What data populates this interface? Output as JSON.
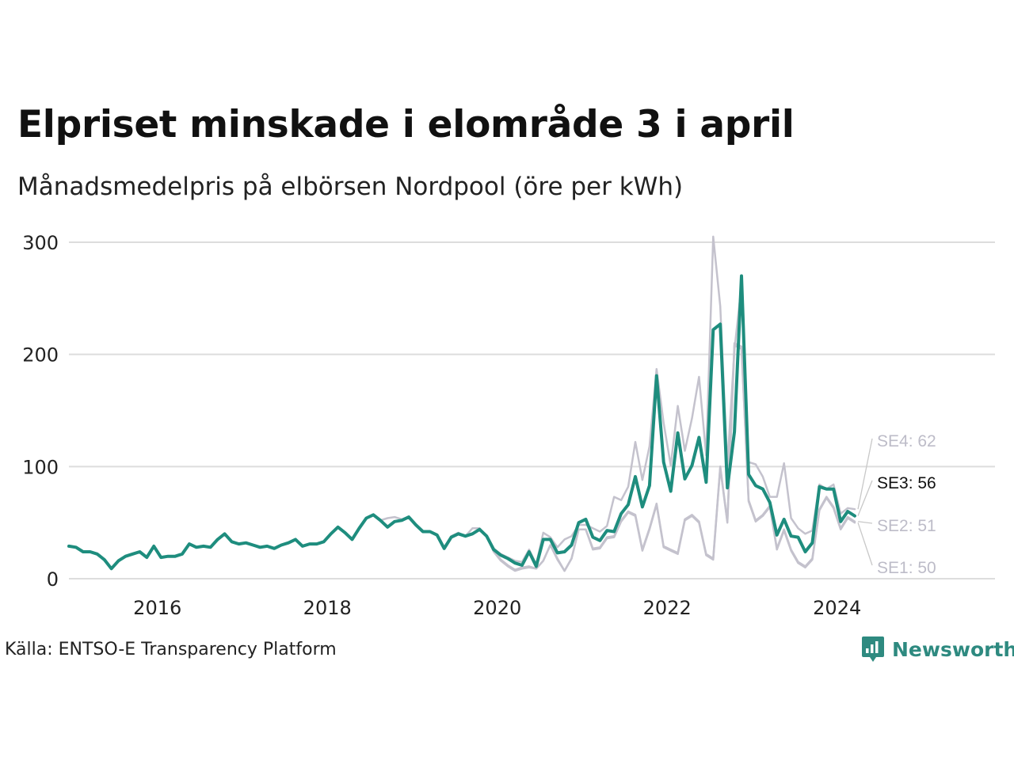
{
  "title": "Elpriset minskade i elområde 3 i april",
  "subtitle": "Månadsmedelpris på elbörsen Nordpool (öre per kWh)",
  "source": "Källa: ENTSO-E Transparency Platform",
  "brand": {
    "name": "Newsworthy",
    "icon": "newsworthy-logo-icon",
    "color": "#2e8a80"
  },
  "colors": {
    "highlight": "#1e8d7e",
    "muted": "#c4c2cd",
    "grid": "#dddddd"
  },
  "chart_data": {
    "type": "line",
    "x_start": "2015-01",
    "x_end": "2024-04",
    "xlim": [
      2015.0,
      2025.9
    ],
    "ylim": [
      0,
      300
    ],
    "yticks": [
      0,
      100,
      200,
      300
    ],
    "ytick_labels": [
      "0",
      "100",
      "200",
      "300"
    ],
    "xticks": [
      2016,
      2018,
      2020,
      2022,
      2024
    ],
    "xtick_labels": [
      "2016",
      "2018",
      "2020",
      "2022",
      "2024"
    ],
    "grid": true,
    "highlight_series": "SE3",
    "series": [
      {
        "name": "SE3",
        "label": "SE3: 56",
        "values": [
          29,
          28,
          24,
          24,
          22,
          17,
          9,
          16,
          20,
          22,
          24,
          19,
          29,
          19,
          20,
          20,
          22,
          31,
          28,
          29,
          28,
          35,
          40,
          33,
          31,
          32,
          30,
          28,
          29,
          27,
          30,
          32,
          35,
          29,
          31,
          31,
          33,
          40,
          46,
          41,
          35,
          45,
          54,
          57,
          52,
          46,
          51,
          52,
          55,
          48,
          42,
          42,
          39,
          27,
          37,
          40,
          38,
          40,
          44,
          38,
          26,
          21,
          18,
          14,
          12,
          24,
          11,
          35,
          35,
          23,
          24,
          30,
          50,
          53,
          37,
          34,
          43,
          42,
          58,
          66,
          91,
          64,
          83,
          181,
          104,
          78,
          130,
          89,
          101,
          126,
          86,
          222,
          227,
          81,
          131,
          270,
          93,
          83,
          80,
          68,
          39,
          53,
          38,
          37,
          24,
          32,
          82,
          80,
          80,
          51,
          60,
          56
        ]
      },
      {
        "name": "SE4",
        "label": "SE4: 62",
        "values": [
          29,
          28,
          24,
          24,
          22,
          17,
          9,
          16,
          20,
          22,
          24,
          19,
          29,
          19,
          20,
          20,
          22,
          31,
          28,
          29,
          28,
          35,
          40,
          33,
          31,
          32,
          30,
          28,
          29,
          27,
          30,
          32,
          35,
          29,
          31,
          31,
          33,
          40,
          46,
          41,
          35,
          45,
          54,
          57,
          52,
          54,
          55,
          53,
          55,
          48,
          42,
          42,
          39,
          27,
          38,
          41,
          38,
          45,
          45,
          38,
          27,
          22,
          19,
          16,
          15,
          26,
          13,
          41,
          37,
          28,
          35,
          38,
          48,
          48,
          45,
          42,
          47,
          73,
          70,
          82,
          122,
          88,
          118,
          187,
          139,
          101,
          154,
          114,
          143,
          180,
          110,
          305,
          243,
          101,
          204,
          262,
          104,
          102,
          91,
          73,
          73,
          103,
          54,
          45,
          40,
          43,
          84,
          80,
          84,
          58,
          63,
          62
        ]
      },
      {
        "name": "SE2",
        "label": "SE2: 51",
        "values": [
          29,
          28,
          24,
          24,
          22,
          17,
          9,
          16,
          20,
          22,
          24,
          19,
          29,
          19,
          20,
          20,
          22,
          31,
          28,
          29,
          28,
          35,
          40,
          33,
          31,
          32,
          30,
          28,
          29,
          27,
          30,
          32,
          35,
          29,
          31,
          31,
          33,
          40,
          46,
          41,
          35,
          45,
          54,
          57,
          52,
          46,
          51,
          52,
          55,
          48,
          42,
          42,
          39,
          27,
          37,
          40,
          38,
          40,
          44,
          38,
          25,
          17,
          12,
          8,
          10,
          11,
          9,
          16,
          30,
          18,
          7,
          18,
          44,
          44,
          27,
          28,
          37,
          38,
          52,
          60,
          57,
          26,
          45,
          67,
          29,
          26,
          23,
          53,
          57,
          51,
          22,
          18,
          100,
          51,
          210,
          207,
          70,
          52,
          57,
          65,
          27,
          44,
          26,
          15,
          11,
          18,
          62,
          73,
          64,
          45,
          55,
          51
        ]
      },
      {
        "name": "SE1",
        "label": "SE1: 50",
        "values": [
          29,
          28,
          24,
          24,
          22,
          17,
          9,
          16,
          20,
          22,
          24,
          19,
          29,
          19,
          20,
          20,
          22,
          31,
          28,
          29,
          28,
          35,
          40,
          33,
          31,
          32,
          30,
          28,
          29,
          27,
          30,
          32,
          35,
          29,
          31,
          31,
          33,
          40,
          46,
          41,
          35,
          45,
          54,
          57,
          52,
          46,
          51,
          52,
          55,
          48,
          42,
          42,
          39,
          27,
          37,
          40,
          38,
          40,
          44,
          38,
          24,
          16,
          11,
          7,
          9,
          10,
          9,
          16,
          30,
          17,
          7,
          18,
          44,
          44,
          26,
          27,
          36,
          37,
          51,
          59,
          56,
          25,
          44,
          66,
          28,
          25,
          22,
          52,
          56,
          50,
          21,
          17,
          99,
          50,
          208,
          205,
          69,
          51,
          56,
          64,
          26,
          43,
          25,
          14,
          10,
          17,
          61,
          72,
          63,
          44,
          54,
          50
        ]
      }
    ]
  }
}
